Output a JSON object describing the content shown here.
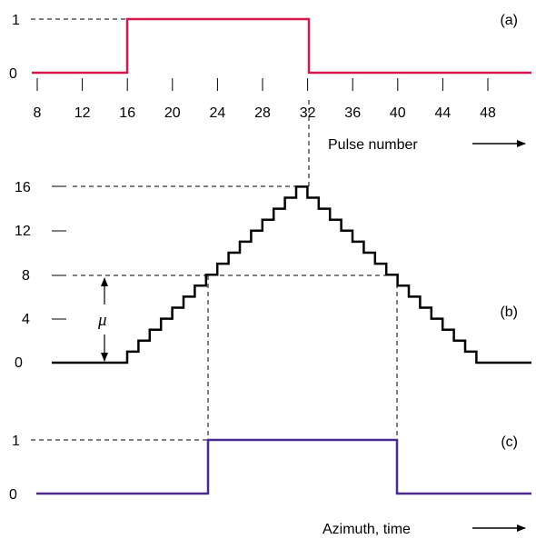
{
  "panel_a": {
    "label": "(a)",
    "y_ticks": [
      "1",
      "0"
    ],
    "x_ticks": [
      "8",
      "12",
      "16",
      "20",
      "24",
      "28",
      "32",
      "36",
      "40",
      "44",
      "48"
    ],
    "x_axis_label": "Pulse number",
    "color": "#d6174c",
    "pulse": {
      "start": 16,
      "end": 32,
      "high": 1,
      "low": 0
    }
  },
  "panel_b": {
    "label": "(b)",
    "y_ticks": [
      "16",
      "12",
      "8",
      "4",
      "0"
    ],
    "mu_label": "μ",
    "color": "#000000",
    "threshold": 8,
    "peak": 16
  },
  "panel_c": {
    "label": "(c)",
    "y_ticks": [
      "1",
      "0"
    ],
    "x_axis_label": "Azimuth, time",
    "color": "#4b2a8f"
  }
}
